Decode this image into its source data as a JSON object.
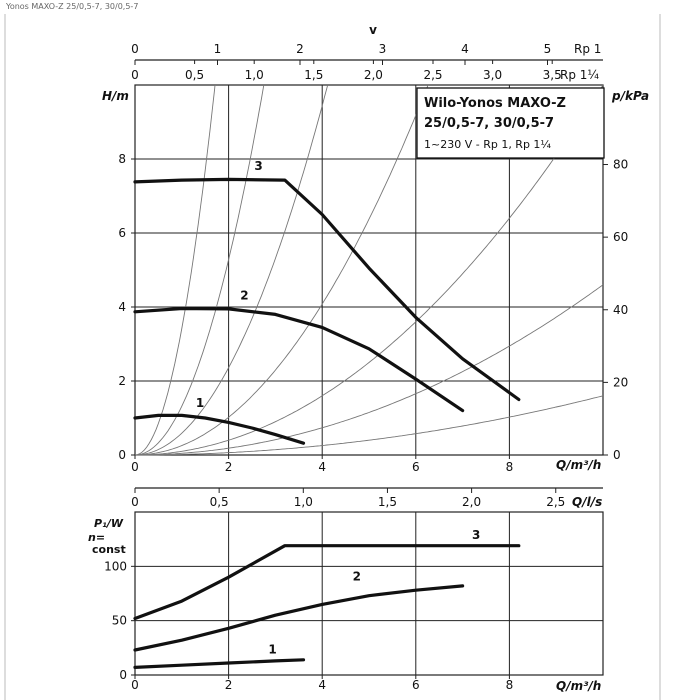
{
  "caption": "Yonos MAXO-Z 25/0,5-7, 30/0,5-7",
  "colors": {
    "curve": "#111111",
    "grid": "#222222",
    "system": "#777777",
    "box_border": "#111111"
  },
  "chart_data": [
    {
      "type": "line",
      "title_lines": [
        "Wilo-Yonos MAXO-Z",
        "25/0,5-7, 30/0,5-7"
      ],
      "subtitle": "1~230 V - Rp 1, Rp 1¼",
      "xlabel": "Q/m³/h",
      "ylabel": "H/m",
      "ylabel_right": "p/kPa",
      "xlim": [
        0,
        10
      ],
      "ylim": [
        0,
        10
      ],
      "x_ticks": [
        "0",
        "2",
        "4",
        "6",
        "8"
      ],
      "y_ticks": [
        "0",
        "2",
        "4",
        "6",
        "8"
      ],
      "y_right_ticks": [
        "0",
        "20",
        "40",
        "60",
        "80"
      ],
      "top_axis_v": {
        "label": "v",
        "tick_labels": [
          "0",
          "1",
          "2",
          "3",
          "4",
          "5"
        ],
        "unit": "Rp 1"
      },
      "top_axis_v2": {
        "tick_labels": [
          "0",
          "0,5",
          "1,0",
          "1,5",
          "2,0",
          "2,5",
          "3,0",
          "3,5"
        ],
        "unit": "Rp 1¼"
      },
      "grid": true,
      "series": [
        {
          "name": "1",
          "points": [
            [
              0,
              1.0
            ],
            [
              0.5,
              1.07
            ],
            [
              1.0,
              1.07
            ],
            [
              1.5,
              1.0
            ],
            [
              2.0,
              0.88
            ],
            [
              2.5,
              0.73
            ],
            [
              3.0,
              0.55
            ],
            [
              3.6,
              0.32
            ]
          ]
        },
        {
          "name": "2",
          "points": [
            [
              0,
              3.87
            ],
            [
              1.0,
              3.96
            ],
            [
              2.0,
              3.95
            ],
            [
              3.0,
              3.8
            ],
            [
              4.0,
              3.45
            ],
            [
              5.0,
              2.87
            ],
            [
              6.0,
              2.05
            ],
            [
              7.0,
              1.2
            ]
          ]
        },
        {
          "name": "3",
          "points": [
            [
              0,
              7.38
            ],
            [
              1.0,
              7.43
            ],
            [
              2.0,
              7.45
            ],
            [
              3.2,
              7.43
            ],
            [
              4.0,
              6.5
            ],
            [
              5.0,
              5.05
            ],
            [
              6.0,
              3.72
            ],
            [
              7.0,
              2.6
            ],
            [
              8.2,
              1.5
            ]
          ]
        }
      ],
      "system_curves": [
        {
          "k": 3.42
        },
        {
          "k": 1.32
        },
        {
          "k": 0.59
        },
        {
          "k": 0.255
        },
        {
          "k": 0.1
        },
        {
          "k": 0.046
        },
        {
          "k": 0.016
        }
      ]
    },
    {
      "type": "line",
      "xlabel": "Q/m³/h",
      "ylabel": "P₁/W",
      "ylabel_extra": [
        "n=",
        "const"
      ],
      "xlim": [
        0,
        10
      ],
      "ylim": [
        0,
        150
      ],
      "x_ticks": [
        "0",
        "2",
        "4",
        "6",
        "8"
      ],
      "y_ticks": [
        "0",
        "50",
        "100"
      ],
      "top_axis_q": {
        "tick_labels": [
          "0",
          "0,5",
          "1,0",
          "1,5",
          "2,0",
          "2,5"
        ],
        "unit": "Q/l/s"
      },
      "grid": true,
      "series": [
        {
          "name": "1",
          "points": [
            [
              0,
              7
            ],
            [
              1.0,
              9
            ],
            [
              2.0,
              11
            ],
            [
              3.0,
              13
            ],
            [
              3.6,
              14
            ]
          ]
        },
        {
          "name": "2",
          "points": [
            [
              0,
              23
            ],
            [
              1.0,
              32
            ],
            [
              2.0,
              43
            ],
            [
              3.0,
              55
            ],
            [
              4.0,
              65
            ],
            [
              5.0,
              73
            ],
            [
              6.0,
              78
            ],
            [
              7.0,
              82
            ]
          ]
        },
        {
          "name": "3",
          "points": [
            [
              0,
              52
            ],
            [
              1.0,
              68
            ],
            [
              2.0,
              90
            ],
            [
              3.2,
              119
            ],
            [
              4.0,
              119
            ],
            [
              6.0,
              119
            ],
            [
              8.2,
              119
            ]
          ]
        }
      ]
    }
  ]
}
